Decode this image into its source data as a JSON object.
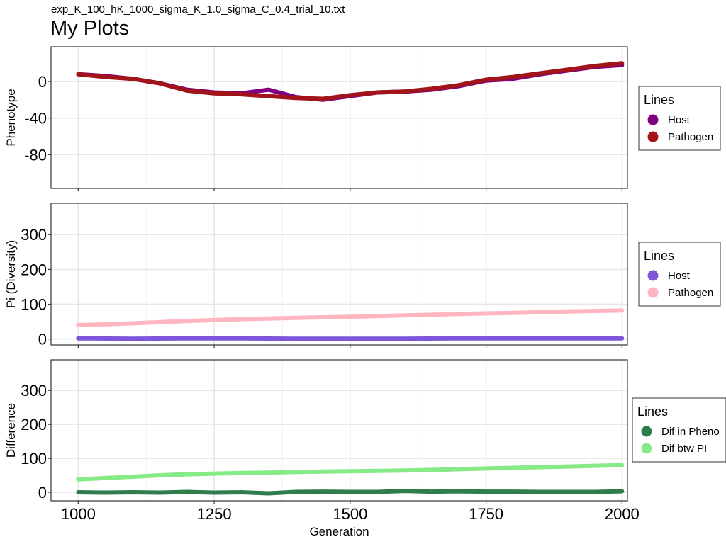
{
  "subtitle": "exp_K_100_hK_1000_sigma_K_1.0_sigma_C_0.4_trial_10.txt",
  "title": "My Plots",
  "chart_data": [
    {
      "type": "line",
      "id": "phenotype",
      "ylabel": "Phenotype",
      "xlim": [
        950,
        2010
      ],
      "ylim": [
        -117,
        38
      ],
      "yticks": [
        0,
        -40,
        -80
      ],
      "ytick_labels": [
        "0",
        "-40",
        "-80"
      ],
      "xticks": [
        1000,
        1250,
        1500,
        1750,
        2000
      ],
      "grid": true,
      "legend": {
        "title": "Lines",
        "placement": "right"
      },
      "x": [
        1000,
        1050,
        1100,
        1150,
        1200,
        1250,
        1300,
        1350,
        1400,
        1450,
        1500,
        1550,
        1600,
        1650,
        1700,
        1750,
        1800,
        1850,
        1900,
        1950,
        2000
      ],
      "series": [
        {
          "name": "Host",
          "color": "#800080",
          "values": [
            8,
            6,
            3,
            -2,
            -9,
            -12,
            -13,
            -9,
            -17,
            -20,
            -16,
            -12,
            -11,
            -9,
            -5,
            1,
            3,
            8,
            12,
            16,
            18
          ]
        },
        {
          "name": "Pathogen",
          "color": "#a0141a",
          "values": [
            8,
            5,
            3,
            -2,
            -10,
            -13,
            -14,
            -16,
            -18,
            -19,
            -15,
            -12,
            -11,
            -8,
            -4,
            2,
            5,
            9,
            13,
            17,
            20
          ]
        }
      ]
    },
    {
      "type": "line",
      "id": "diversity",
      "ylabel": "Pi (Diversity)",
      "xlim": [
        950,
        2010
      ],
      "ylim": [
        -17,
        390
      ],
      "yticks": [
        0,
        100,
        200,
        300
      ],
      "ytick_labels": [
        "0",
        "100",
        "200",
        "300"
      ],
      "xticks": [
        1000,
        1250,
        1500,
        1750,
        2000
      ],
      "grid": true,
      "legend": {
        "title": "Lines",
        "placement": "right"
      },
      "x": [
        1000,
        1100,
        1200,
        1300,
        1400,
        1500,
        1600,
        1700,
        1800,
        1900,
        2000
      ],
      "series": [
        {
          "name": "Host",
          "color": "#7f56d9",
          "values": [
            2,
            1,
            2,
            2,
            1,
            1,
            1,
            2,
            2,
            2,
            2
          ]
        },
        {
          "name": "Pathogen",
          "color": "#ffb6c1",
          "values": [
            40,
            45,
            52,
            57,
            61,
            64,
            68,
            72,
            75,
            79,
            82
          ]
        }
      ]
    },
    {
      "type": "line",
      "id": "difference",
      "ylabel": "Difference",
      "xlabel": "Generation",
      "xlim": [
        950,
        2010
      ],
      "ylim": [
        -25,
        390
      ],
      "yticks": [
        0,
        100,
        200,
        300
      ],
      "ytick_labels": [
        "0",
        "100",
        "200",
        "300"
      ],
      "xticks": [
        1000,
        1250,
        1500,
        1750,
        2000
      ],
      "xtick_labels": [
        "1000",
        "1250",
        "1500",
        "1750",
        "2000"
      ],
      "grid": true,
      "legend": {
        "title": "Lines",
        "placement": "right"
      },
      "x": [
        1000,
        1050,
        1100,
        1150,
        1200,
        1250,
        1300,
        1350,
        1400,
        1450,
        1500,
        1550,
        1600,
        1650,
        1700,
        1750,
        1800,
        1850,
        1900,
        1950,
        2000
      ],
      "series": [
        {
          "name": "Dif in Pheno",
          "color": "#2e7d4a",
          "values": [
            0,
            -1,
            0,
            -1,
            1,
            -1,
            0,
            -3,
            1,
            2,
            1,
            1,
            4,
            2,
            3,
            2,
            2,
            1,
            1,
            1,
            3
          ]
        },
        {
          "name": "Dif btw PI",
          "color": "#86ea86",
          "values": [
            38,
            42,
            46,
            50,
            53,
            55,
            57,
            58,
            60,
            61,
            62,
            63,
            64,
            66,
            68,
            70,
            72,
            74,
            76,
            78,
            80
          ]
        }
      ]
    }
  ]
}
